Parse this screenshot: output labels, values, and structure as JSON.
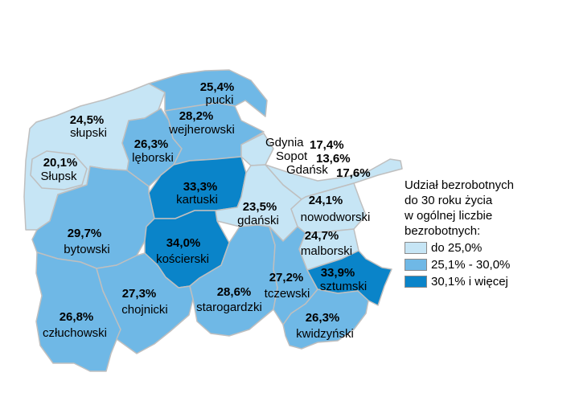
{
  "colors": {
    "light": "#c6e5f5",
    "medium": "#6fb8e6",
    "dark": "#0a84c9",
    "border": "#bfbfbf"
  },
  "legend": {
    "title": "Udział bezrobotnych\ndo 30 roku życia\nw ogólnej liczbie\nbezrobotnych:",
    "items": [
      {
        "label": "do 25,0%",
        "class": "light"
      },
      {
        "label": "25,1% - 30,0%",
        "class": "medium"
      },
      {
        "label": "30,1% i więcej",
        "class": "dark"
      }
    ]
  },
  "regions": {
    "pucki": {
      "name": "pucki",
      "value": "25,4%",
      "class": "medium"
    },
    "slupski": {
      "name": "słupski",
      "value": "24,5%",
      "class": "light"
    },
    "slupsk": {
      "name": "Słupsk",
      "value": "20,1%",
      "class": "light"
    },
    "leborski": {
      "name": "lęborski",
      "value": "26,3%",
      "class": "medium"
    },
    "wejherowski": {
      "name": "wejherowski",
      "value": "28,2%",
      "class": "medium"
    },
    "kartuski": {
      "name": "kartuski",
      "value": "33,3%",
      "class": "dark"
    },
    "bytowski": {
      "name": "bytowski",
      "value": "29,7%",
      "class": "medium"
    },
    "koscierski": {
      "name": "kościerski",
      "value": "34,0%",
      "class": "dark"
    },
    "gdanski": {
      "name": "gdański",
      "value": "23,5%",
      "class": "light"
    },
    "nowodworski": {
      "name": "nowodworski",
      "value": "24,1%",
      "class": "light"
    },
    "malborski": {
      "name": "malborski",
      "value": "24,7%",
      "class": "light"
    },
    "sztumski": {
      "name": "sztumski",
      "value": "33,9%",
      "class": "dark"
    },
    "tczewski": {
      "name": "tczewski",
      "value": "27,2%",
      "class": "medium"
    },
    "starogardzki": {
      "name": "starogardzki",
      "value": "28,6%",
      "class": "medium"
    },
    "chojnicki": {
      "name": "chojnicki",
      "value": "27,3%",
      "class": "medium"
    },
    "czluchowski": {
      "name": "człuchowski",
      "value": "26,8%",
      "class": "medium"
    },
    "kwidzynski": {
      "name": "kwidzyński",
      "value": "26,3%",
      "class": "medium"
    },
    "gdynia": {
      "name": "Gdynia",
      "value": "17,4%",
      "class": "light"
    },
    "sopot": {
      "name": "Sopot",
      "value": "13,6%",
      "class": "light"
    },
    "gdansk": {
      "name": "Gdańsk",
      "value": "17,6%",
      "class": "light"
    }
  }
}
